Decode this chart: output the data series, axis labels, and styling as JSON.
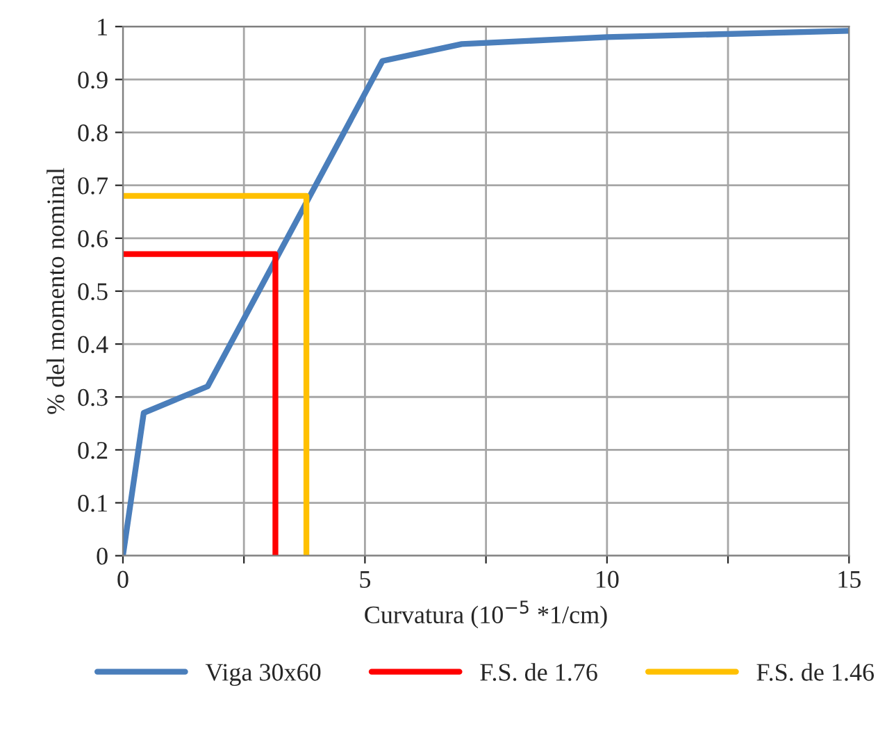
{
  "chart_data": {
    "type": "line",
    "xlabel": "Curvatura (10$^{−5}$ *1/cm)",
    "ylabel": "% del momento nominal",
    "xlim": [
      0,
      15
    ],
    "ylim": [
      0,
      1
    ],
    "xticks": [
      0,
      {
        "value": 2.5,
        "label": null
      },
      5,
      {
        "value": 7.5,
        "label": null
      },
      10,
      {
        "value": 12.5,
        "label": null
      },
      15
    ],
    "yticks": [
      0,
      0.1,
      0.2,
      0.3,
      0.4,
      0.5,
      0.6,
      0.7,
      0.8,
      0.9,
      1
    ],
    "grid": true,
    "legend": "bottom",
    "marker": "none",
    "line_style": "solid",
    "series": [
      {
        "name": "Viga 30x60",
        "color": "#4a7ebb",
        "x": [
          0,
          0.43,
          1.75,
          5.36,
          7.0,
          10,
          15
        ],
        "values": [
          0,
          0.27,
          0.32,
          0.935,
          0.967,
          0.98,
          0.992
        ]
      },
      {
        "name": "F.S. de 1.76",
        "color": "#ff0000",
        "x": [
          0,
          3.15,
          3.15
        ],
        "values": [
          0.57,
          0.57,
          0
        ]
      },
      {
        "name": "F.S. de 1.46",
        "color": "#ffc000",
        "x": [
          0,
          3.79,
          3.79
        ],
        "values": [
          0.68,
          0.68,
          0
        ]
      }
    ]
  }
}
